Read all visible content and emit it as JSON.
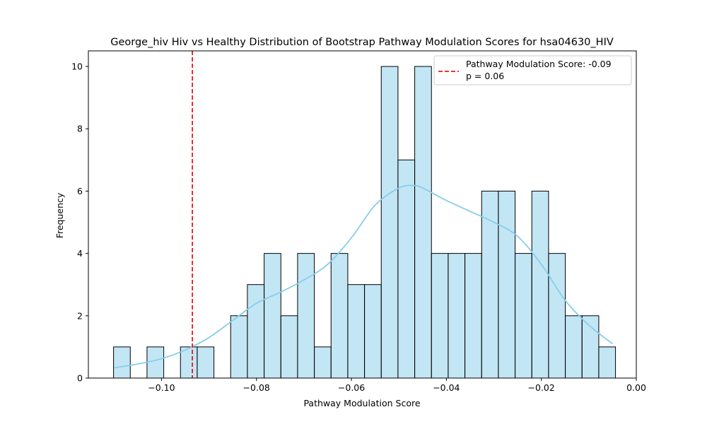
{
  "chart_data": {
    "type": "bar",
    "title": "George_hiv Hiv vs Healthy Distribution of Bootstrap Pathway Modulation Scores for hsa04630_HIV",
    "xlabel": "Pathway Modulation Score",
    "ylabel": "Frequency",
    "xlim": [
      -0.1154,
      0.0
    ],
    "ylim": [
      0,
      10.5
    ],
    "xticks": [
      -0.1,
      -0.08,
      -0.06,
      -0.04,
      -0.02,
      0.0
    ],
    "xtick_labels": [
      "−0.10",
      "−0.08",
      "−0.06",
      "−0.04",
      "−0.02",
      "0.00"
    ],
    "yticks": [
      0,
      2,
      4,
      6,
      8,
      10
    ],
    "ytick_labels": [
      "0",
      "2",
      "4",
      "6",
      "8",
      "10"
    ],
    "grid": false,
    "legend_position": "top-right",
    "bin_start": -0.1101,
    "bin_width": 0.003524,
    "bin_counts": [
      1,
      0,
      1,
      0,
      1,
      1,
      0,
      2,
      3,
      4,
      2,
      4,
      1,
      4,
      3,
      3,
      10,
      7,
      10,
      4,
      4,
      4,
      6,
      6,
      4,
      6,
      4,
      2,
      2,
      1
    ],
    "bar_color": "#87ceeb",
    "bar_edge_color": "#000000",
    "kde": {
      "color": "#87ceeb",
      "x": [
        -0.11,
        -0.105,
        -0.1,
        -0.095,
        -0.09,
        -0.085,
        -0.08,
        -0.075,
        -0.07,
        -0.065,
        -0.06,
        -0.055,
        -0.05,
        -0.047,
        -0.045,
        -0.04,
        -0.035,
        -0.03,
        -0.025,
        -0.02,
        -0.015,
        -0.01,
        -0.005
      ],
      "y": [
        0.33,
        0.45,
        0.62,
        0.9,
        1.3,
        1.85,
        2.4,
        2.75,
        3.15,
        3.65,
        4.5,
        5.55,
        6.1,
        6.18,
        6.1,
        5.7,
        5.35,
        5.0,
        4.55,
        3.65,
        2.5,
        1.7,
        1.1
      ]
    },
    "reference_line": {
      "x": -0.0935,
      "color": "#e31a1c",
      "style": "dashed",
      "legend_label": "Pathway Modulation Score: -0.09",
      "legend_sublabel": "p = 0.06"
    }
  }
}
